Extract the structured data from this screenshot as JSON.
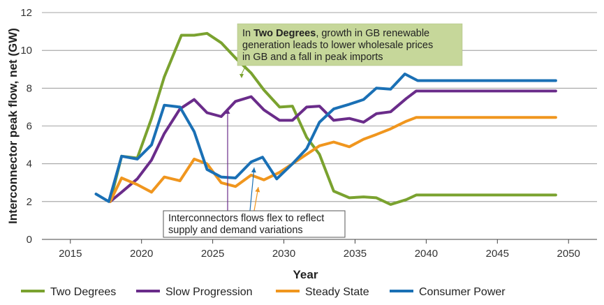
{
  "chart_data": {
    "type": "line",
    "xlabel": "Year",
    "ylabel": "Interconnector peak flow, net (GW)",
    "xlim": [
      2013,
      2052
    ],
    "ylim": [
      0,
      12
    ],
    "xticks": [
      2015,
      2020,
      2025,
      2030,
      2035,
      2040,
      2045,
      2050
    ],
    "yticks": [
      0,
      2,
      4,
      6,
      8,
      10,
      12
    ],
    "grid": "horizontal",
    "legend_position": "bottom",
    "series": [
      {
        "name": "Two Degrees",
        "color": "#7AA22F",
        "points": [
          [
            2017.8,
            2.0
          ],
          [
            2018.6,
            4.4
          ],
          [
            2019.7,
            4.3
          ],
          [
            2020.7,
            6.4
          ],
          [
            2021.6,
            8.6
          ],
          [
            2022.8,
            10.8
          ],
          [
            2023.7,
            10.8
          ],
          [
            2024.6,
            10.9
          ],
          [
            2025.6,
            10.4
          ],
          [
            2026.6,
            9.6
          ],
          [
            2027.7,
            8.8
          ],
          [
            2028.6,
            7.9
          ],
          [
            2029.7,
            7.0
          ],
          [
            2030.6,
            7.05
          ],
          [
            2031.6,
            5.4
          ],
          [
            2032.5,
            4.5
          ],
          [
            2033.5,
            2.55
          ],
          [
            2034.6,
            2.2
          ],
          [
            2035.6,
            2.25
          ],
          [
            2036.5,
            2.2
          ],
          [
            2037.5,
            1.85
          ],
          [
            2038.6,
            2.1
          ],
          [
            2039.3,
            2.35
          ],
          [
            2040.5,
            2.35
          ],
          [
            2045,
            2.35
          ],
          [
            2049.1,
            2.35
          ]
        ]
      },
      {
        "name": "Slow Progression",
        "color": "#6A2C8A",
        "points": [
          [
            2017.8,
            2.0
          ],
          [
            2018.6,
            2.5
          ],
          [
            2019.7,
            3.2
          ],
          [
            2020.7,
            4.2
          ],
          [
            2021.6,
            5.6
          ],
          [
            2022.7,
            6.9
          ],
          [
            2023.7,
            7.4
          ],
          [
            2024.6,
            6.7
          ],
          [
            2025.6,
            6.5
          ],
          [
            2026.6,
            7.3
          ],
          [
            2027.7,
            7.55
          ],
          [
            2028.6,
            6.85
          ],
          [
            2029.7,
            6.3
          ],
          [
            2030.6,
            6.3
          ],
          [
            2031.6,
            7.0
          ],
          [
            2032.5,
            7.05
          ],
          [
            2033.5,
            6.3
          ],
          [
            2034.6,
            6.4
          ],
          [
            2035.6,
            6.2
          ],
          [
            2036.5,
            6.65
          ],
          [
            2037.5,
            6.75
          ],
          [
            2038.6,
            7.45
          ],
          [
            2039.3,
            7.85
          ],
          [
            2040.5,
            7.85
          ],
          [
            2045,
            7.85
          ],
          [
            2049.1,
            7.85
          ]
        ]
      },
      {
        "name": "Steady State",
        "color": "#F0961E",
        "points": [
          [
            2017.8,
            2.0
          ],
          [
            2018.6,
            3.25
          ],
          [
            2019.7,
            2.9
          ],
          [
            2020.7,
            2.5
          ],
          [
            2021.6,
            3.3
          ],
          [
            2022.7,
            3.1
          ],
          [
            2023.7,
            4.25
          ],
          [
            2024.6,
            4.0
          ],
          [
            2025.6,
            3.0
          ],
          [
            2026.6,
            2.8
          ],
          [
            2027.7,
            3.4
          ],
          [
            2028.6,
            3.15
          ],
          [
            2029.7,
            3.55
          ],
          [
            2030.6,
            4.0
          ],
          [
            2031.6,
            4.5
          ],
          [
            2032.5,
            4.95
          ],
          [
            2033.5,
            5.15
          ],
          [
            2034.6,
            4.9
          ],
          [
            2035.6,
            5.3
          ],
          [
            2036.5,
            5.55
          ],
          [
            2037.5,
            5.85
          ],
          [
            2038.6,
            6.25
          ],
          [
            2039.3,
            6.45
          ],
          [
            2040.5,
            6.45
          ],
          [
            2045,
            6.45
          ],
          [
            2049.1,
            6.45
          ]
        ]
      },
      {
        "name": "Consumer Power",
        "color": "#1A70B5",
        "points": [
          [
            2016.8,
            2.4
          ],
          [
            2017.7,
            2.0
          ],
          [
            2018.6,
            4.4
          ],
          [
            2019.7,
            4.25
          ],
          [
            2020.7,
            5.0
          ],
          [
            2021.6,
            7.1
          ],
          [
            2022.7,
            7.0
          ],
          [
            2023.7,
            5.7
          ],
          [
            2024.6,
            3.7
          ],
          [
            2025.6,
            3.3
          ],
          [
            2026.6,
            3.25
          ],
          [
            2027.7,
            4.1
          ],
          [
            2028.5,
            4.35
          ],
          [
            2029.5,
            3.2
          ],
          [
            2030.6,
            4.0
          ],
          [
            2031.6,
            4.8
          ],
          [
            2032.5,
            6.2
          ],
          [
            2033.5,
            6.9
          ],
          [
            2034.6,
            7.15
          ],
          [
            2035.6,
            7.4
          ],
          [
            2036.5,
            8.0
          ],
          [
            2037.5,
            7.95
          ],
          [
            2038.5,
            8.75
          ],
          [
            2039.4,
            8.4
          ],
          [
            2040.5,
            8.4
          ],
          [
            2045,
            8.4
          ],
          [
            2049.1,
            8.4
          ]
        ]
      }
    ],
    "annotations": [
      {
        "lines": [
          "In Two Degrees, growth in GB renewable",
          "generation leads to lower wholesale prices",
          "in GB and a fall in peak imports"
        ],
        "bold_phrase": "Two Degrees",
        "box_color": "#C6D79A"
      },
      {
        "lines": [
          "Interconnectors flows flex to reflect",
          "supply and demand variations"
        ],
        "box_color": "#FFFFFF"
      }
    ]
  }
}
